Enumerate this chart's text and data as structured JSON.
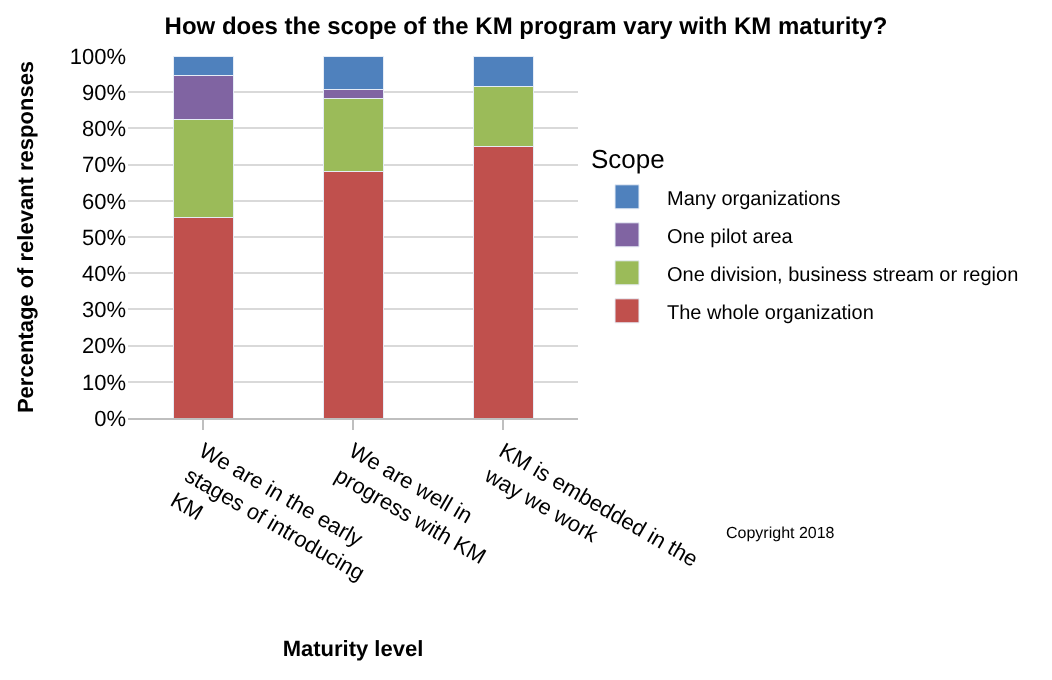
{
  "chart_data": {
    "type": "bar",
    "stacked": true,
    "title": "How does the scope of the KM program vary with KM maturity?",
    "xlabel": "Maturity level",
    "ylabel": "Percentage of relevant responses",
    "legend_title": "Scope",
    "categories": [
      "We are in the early stages of introducing KM",
      "We are well in progress with KM",
      "KM is embedded in the way we work"
    ],
    "series": [
      {
        "name": "The whole organization",
        "color": "#c0504d",
        "values": [
          55.5,
          68,
          75
        ]
      },
      {
        "name": "One division, business stream or region",
        "color": "#9bbb59",
        "values": [
          27,
          20.3,
          16.7
        ]
      },
      {
        "name": "One pilot area",
        "color": "#8064a2",
        "values": [
          12,
          2.5,
          0
        ]
      },
      {
        "name": "Many organizations",
        "color": "#4f81bd",
        "values": [
          5.5,
          9.2,
          8.3
        ]
      }
    ],
    "ylim": [
      0,
      100
    ],
    "yticks": [
      {
        "value": 0,
        "label": "0%"
      },
      {
        "value": 10,
        "label": "10%"
      },
      {
        "value": 20,
        "label": "20%"
      },
      {
        "value": 30,
        "label": "30%"
      },
      {
        "value": 40,
        "label": "40%"
      },
      {
        "value": 50,
        "label": "50%"
      },
      {
        "value": 60,
        "label": "60%"
      },
      {
        "value": 70,
        "label": "70%"
      },
      {
        "value": 80,
        "label": "80%"
      },
      {
        "value": 90,
        "label": "90%"
      },
      {
        "value": 100,
        "label": "100%"
      }
    ],
    "grid": "y",
    "legend": "right",
    "annotations": [
      "Copyright 2018"
    ]
  }
}
